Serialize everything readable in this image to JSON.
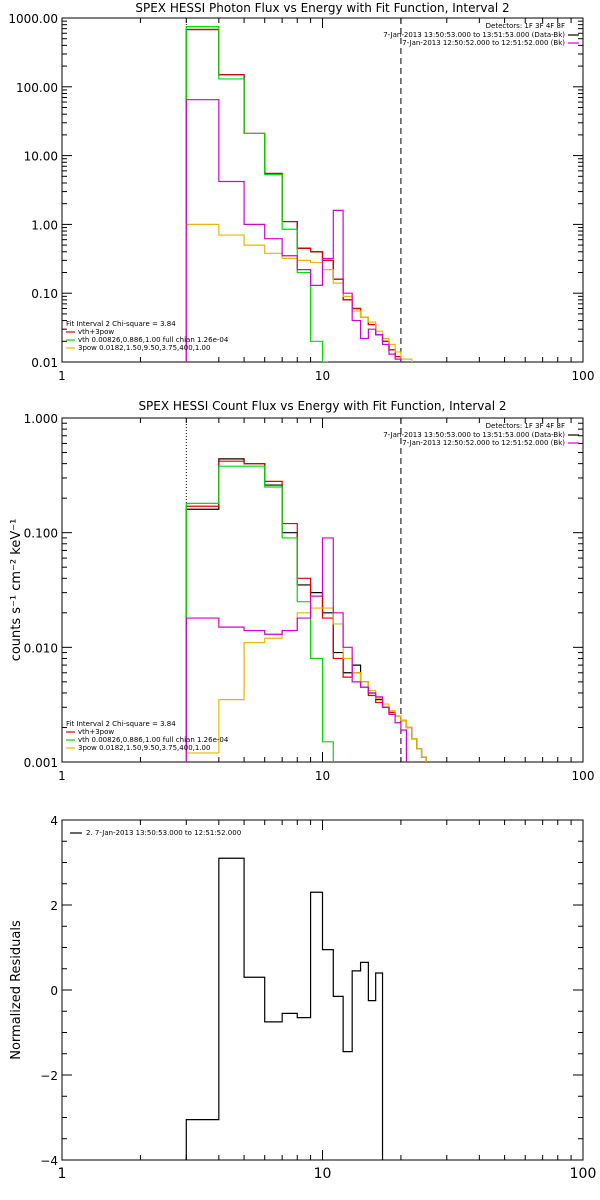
{
  "chart_data": [
    {
      "type": "line",
      "title": "SPEX HESSI Photon Flux vs Energy with Fit Function, Interval 2",
      "xscale": "log",
      "yscale": "log",
      "xlim": [
        1,
        100
      ],
      "ylim": [
        0.01,
        1000
      ],
      "xticks": [
        1,
        10,
        100
      ],
      "xtick_labels": [
        "1",
        "10",
        "100"
      ],
      "yticks": [
        0.01,
        0.1,
        1,
        10,
        100,
        1000
      ],
      "ytick_labels": [
        "0.01",
        "0.10",
        "1.00",
        "10.00",
        "100.00",
        "1000.00"
      ],
      "vlines": [
        {
          "x": 3,
          "style": "dotted"
        },
        {
          "x": 20,
          "style": "dashed"
        }
      ],
      "legend_topright": {
        "header": "Detectors: 1F 3F 4F 8F",
        "entries": [
          {
            "text": "7-Jan-2013 13:50:53.000 to 13:51:53.000 (Data-Bk)",
            "color": "#000000"
          },
          {
            "text": "7-Jan-2013 12:50:52.000 to 12:51:52.000 (Bk)",
            "color": "#d400d4"
          }
        ]
      },
      "legend_bottomleft": {
        "header": "Fit Interval 2   Chi-square = 3.84",
        "entries": [
          {
            "text": "vth+3pow",
            "color": "#e00000"
          },
          {
            "text": "vth 0.00826,0.886,1.00   full chian 1.26e-04",
            "color": "#00dd00"
          },
          {
            "text": "3pow 0.0182,1.50,9.50,3.75,400,1.00",
            "color": "#e6b800"
          }
        ]
      },
      "bin_edges": [
        3,
        3.5,
        4,
        4.5,
        5,
        5.5,
        6,
        6.5,
        7,
        7.5,
        8,
        8.5,
        9,
        9.5,
        10,
        10.5,
        11,
        11.5,
        12,
        12.5,
        13,
        13.5,
        14,
        14.5,
        15,
        15.5,
        16,
        16.5,
        17,
        17.5,
        18,
        18.5,
        19,
        19.5,
        20,
        21,
        22,
        23,
        24,
        25
      ],
      "series": [
        {
          "color": "#000000",
          "values": [
            680,
            680,
            150,
            150,
            21,
            21,
            5.5,
            5.5,
            1.1,
            1.1,
            0.45,
            0.45,
            0.4,
            0.4,
            0.3,
            0.3,
            0.16,
            0.16,
            0.08,
            0.08,
            0.06,
            0.06,
            0.045,
            0.045,
            0.035,
            0.035,
            0.025,
            0.025,
            0.02,
            0.02,
            0.015,
            0.015,
            0.012,
            0.012,
            0.01,
            null,
            null,
            null,
            null
          ]
        },
        {
          "color": "#e00000",
          "values": [
            680,
            680,
            150,
            150,
            21,
            21,
            5.5,
            5.5,
            1.1,
            1.1,
            0.45,
            0.45,
            0.4,
            0.4,
            0.3,
            0.3,
            0.16,
            0.16,
            0.08,
            0.08,
            0.06,
            0.06,
            0.045,
            0.045,
            0.035,
            0.035,
            0.025,
            0.025,
            0.02,
            0.02,
            0.015,
            0.015,
            0.012,
            0.012,
            0.01,
            null,
            null,
            null,
            null
          ]
        },
        {
          "color": "#00dd00",
          "values": [
            750,
            750,
            130,
            130,
            21,
            21,
            5.3,
            5.3,
            0.85,
            0.85,
            0.2,
            0.2,
            0.02,
            0.02,
            0.008,
            null,
            null,
            null,
            null,
            null,
            null,
            null,
            null,
            null,
            null,
            null,
            null,
            null,
            null,
            null,
            null,
            null,
            null,
            null,
            null,
            null,
            null,
            null,
            null
          ]
        },
        {
          "color": "#e6b800",
          "values": [
            1.0,
            1.0,
            0.7,
            0.7,
            0.5,
            0.5,
            0.38,
            0.38,
            0.32,
            0.32,
            0.3,
            0.3,
            0.28,
            0.28,
            0.22,
            0.22,
            0.14,
            0.14,
            0.09,
            0.09,
            0.055,
            0.055,
            0.045,
            0.045,
            0.038,
            0.038,
            0.028,
            0.028,
            0.022,
            0.022,
            0.018,
            0.018,
            0.014,
            0.014,
            0.011,
            0.011,
            null,
            null,
            null
          ]
        },
        {
          "color": "#d400d4",
          "values": [
            65,
            65,
            4.2,
            4.2,
            1.0,
            1.0,
            0.62,
            0.62,
            0.35,
            0.35,
            0.22,
            0.22,
            0.13,
            0.13,
            0.32,
            0.32,
            1.6,
            1.6,
            0.1,
            0.1,
            0.04,
            0.04,
            0.022,
            0.022,
            0.03,
            0.03,
            0.025,
            0.025,
            0.018,
            0.018,
            0.013,
            0.013,
            0.011,
            0.011,
            null,
            null,
            null,
            null,
            null
          ]
        }
      ]
    },
    {
      "type": "line",
      "title": "SPEX HESSI Count Flux vs Energy with Fit Function, Interval 2",
      "ylabel": "counts s⁻¹ cm⁻² keV⁻¹",
      "xscale": "log",
      "yscale": "log",
      "xlim": [
        1,
        100
      ],
      "ylim": [
        0.001,
        1
      ],
      "xticks": [
        1,
        10,
        100
      ],
      "xtick_labels": [
        "1",
        "10",
        "100"
      ],
      "yticks": [
        0.001,
        0.01,
        0.1,
        1
      ],
      "ytick_labels": [
        "0.001",
        "0.010",
        "0.100",
        "1.000"
      ],
      "vlines": [
        {
          "x": 3,
          "style": "dotted"
        },
        {
          "x": 20,
          "style": "dashed"
        }
      ],
      "legend_topright": {
        "header": "Detectors: 1F 3F 4F 8F",
        "entries": [
          {
            "text": "7-Jan-2013 13:50:53.000 to 13:51:53.000 (Data-Bk)",
            "color": "#000000"
          },
          {
            "text": "7-Jan-2013 12:50:52.000 to 12:51:52.000 (Bk)",
            "color": "#d400d4"
          }
        ]
      },
      "legend_bottomleft": {
        "header": "Fit Interval 2   Chi-square = 3.84",
        "entries": [
          {
            "text": "vth+3pow",
            "color": "#e00000"
          },
          {
            "text": "vth 0.00826,0.886,1.00   full chian 1.26e-04",
            "color": "#00dd00"
          },
          {
            "text": "3pow 0.0182,1.50,9.50,3.75,400,1.00",
            "color": "#e6b800"
          }
        ]
      },
      "bin_edges": [
        3,
        4,
        5,
        6,
        7,
        8,
        9,
        10,
        11,
        12,
        13,
        14,
        15,
        16,
        17,
        18,
        19,
        20,
        21,
        22,
        23,
        24,
        25
      ],
      "series": [
        {
          "color": "#000000",
          "values": [
            0.16,
            0.44,
            0.4,
            0.26,
            0.1,
            0.035,
            0.03,
            0.02,
            0.009,
            0.006,
            0.007,
            0.005,
            0.004,
            0.0035,
            0.003,
            0.0027,
            0.0025,
            0.0023,
            0.002,
            0.0016,
            0.0013,
            0.0011
          ]
        },
        {
          "color": "#e00000",
          "values": [
            0.17,
            0.42,
            0.4,
            0.28,
            0.12,
            0.04,
            0.028,
            0.018,
            0.008,
            0.0055,
            0.006,
            0.0045,
            0.0038,
            0.0033,
            0.003,
            0.0027,
            0.0025,
            0.0023,
            0.002,
            0.0016,
            0.0013,
            0.0011
          ]
        },
        {
          "color": "#00dd00",
          "values": [
            0.18,
            0.38,
            0.38,
            0.25,
            0.09,
            0.025,
            0.008,
            0.0015,
            null,
            null,
            null,
            null,
            null,
            null,
            null,
            null,
            null,
            null,
            null,
            null,
            null,
            null
          ]
        },
        {
          "color": "#e6b800",
          "values": [
            0.0012,
            0.0035,
            0.011,
            0.012,
            0.014,
            0.02,
            0.022,
            0.022,
            0.016,
            0.008,
            0.006,
            0.005,
            0.0042,
            0.0036,
            0.0032,
            0.0028,
            0.0025,
            0.0023,
            0.002,
            0.0016,
            0.0013,
            0.0011
          ]
        },
        {
          "color": "#d400d4",
          "values": [
            0.018,
            0.015,
            0.014,
            0.013,
            0.014,
            0.018,
            0.028,
            0.09,
            0.02,
            0.01,
            0.005,
            0.0045,
            0.004,
            0.0037,
            0.003,
            0.0026,
            0.0022,
            0.0019,
            null,
            null,
            null,
            null
          ]
        }
      ]
    },
    {
      "type": "line",
      "title": "",
      "ylabel": "Normalized Residuals",
      "xscale": "log",
      "yscale": "linear",
      "xlim": [
        1,
        100
      ],
      "ylim": [
        -4,
        4
      ],
      "xticks": [
        1,
        10,
        100
      ],
      "xtick_labels": [
        "1",
        "10",
        "100"
      ],
      "yticks": [
        -4,
        -2,
        0,
        2,
        4
      ],
      "ytick_labels": [
        "−4",
        "−2",
        "0",
        "2",
        "4"
      ],
      "legend_topleft": {
        "entries": [
          {
            "text": "2.  7-Jan-2013 13:50:53.000 to 12:51:52.000",
            "color": "#000000"
          }
        ]
      },
      "bin_edges": [
        3,
        4,
        5,
        6,
        7,
        8,
        9,
        10,
        11,
        12,
        13,
        14,
        15,
        16,
        17,
        18,
        19,
        20
      ],
      "series": [
        {
          "color": "#000000",
          "values": [
            -3.05,
            3.1,
            0.3,
            -0.75,
            -0.55,
            -0.65,
            2.3,
            0.95,
            -0.15,
            -1.45,
            0.45,
            0.65,
            -0.25,
            0.4,
            null,
            null,
            null
          ]
        }
      ]
    }
  ]
}
